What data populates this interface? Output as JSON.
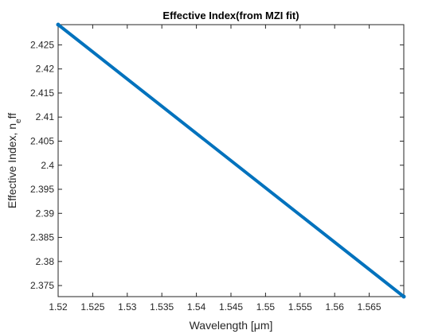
{
  "chart_data": {
    "type": "line",
    "title": "Effective Index(from MZI fit)",
    "xlabel": "Wavelength [μm]",
    "ylabel": "Effective Index, n",
    "ylabel_sub": "e",
    "ylabel_tail": "ff",
    "xlim": [
      1.52,
      1.57
    ],
    "ylim": [
      2.3727,
      2.4292
    ],
    "xticks": [
      1.52,
      1.525,
      1.53,
      1.535,
      1.54,
      1.545,
      1.55,
      1.555,
      1.56,
      1.565
    ],
    "xtick_labels": [
      "1.52",
      "1.525",
      "1.53",
      "1.535",
      "1.54",
      "1.545",
      "1.55",
      "1.555",
      "1.56",
      "1.565"
    ],
    "yticks": [
      2.375,
      2.38,
      2.385,
      2.39,
      2.395,
      2.4,
      2.405,
      2.41,
      2.415,
      2.42,
      2.425
    ],
    "ytick_labels": [
      "2.375",
      "2.38",
      "2.385",
      "2.39",
      "2.395",
      "2.4",
      "2.405",
      "2.41",
      "2.415",
      "2.42",
      "2.425"
    ],
    "grid": false,
    "series": [
      {
        "color": "#0072BD",
        "x": [
          1.52,
          1.57
        ],
        "y": [
          2.4292,
          2.3727
        ]
      }
    ]
  }
}
